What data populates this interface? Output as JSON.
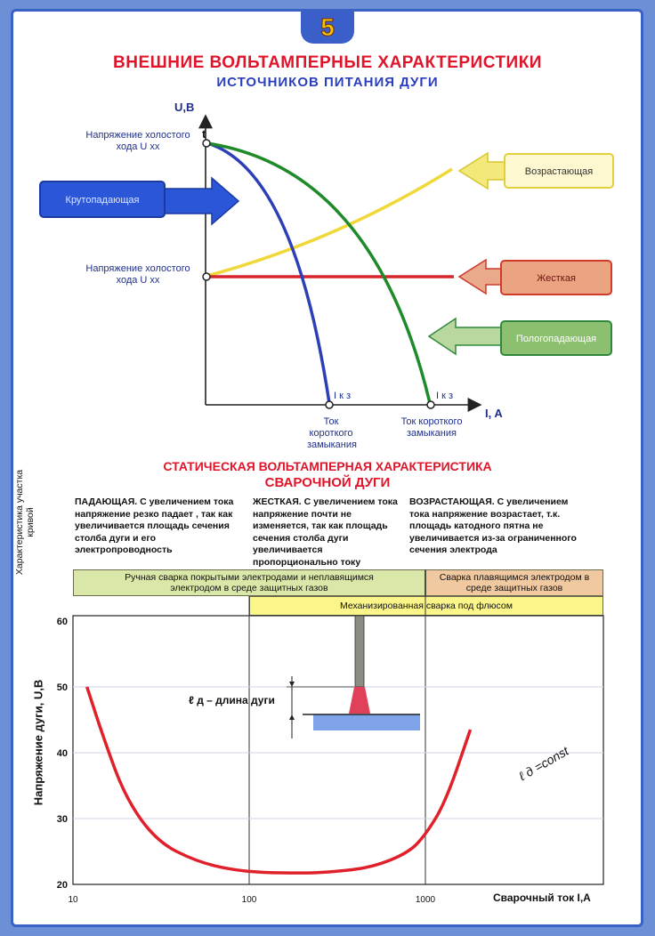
{
  "badge": "5",
  "title": "ВНЕШНИЕ ВОЛЬТАМПЕРНЫЕ ХАРАКТЕРИСТИКИ",
  "subtitle": "ИСТОЧНИКОВ ПИТАНИЯ ДУГИ",
  "chart1": {
    "y_axis_label": "U,B",
    "x_axis_label": "I, A",
    "t_label": "t",
    "uxx_label_1": "Напряжение холостого хода U хх",
    "uxx_label_2": "Напряжение холостого хода U хх",
    "ikz_1": "I к з",
    "ikz_2": "I к з",
    "tok_kz_1": "Ток короткого замыкания",
    "tok_kz_2": "Ток короткого замыкания",
    "callouts": {
      "krutopadayushchaya": "Крутопадающая",
      "vozrastayushchaya": "Возрастающая",
      "zhestkaya": "Жесткая",
      "pologopadayushchaya": "Пологопадающая"
    },
    "colors": {
      "krutopadayushchaya": "#2c3fb8",
      "pologopadayushchaya": "#1f8a2a",
      "zhestkaya": "#d6262b",
      "vozrastayushchaya": "#f0d838"
    }
  },
  "section2": {
    "title_line1": "СТАТИЧЕСКАЯ ВОЛЬТАМПЕРНАЯ ХАРАКТЕРИСТИКА",
    "title_line2": "СВАРОЧНОЙ ДУГИ",
    "side_label": "Характеристика участка кривой",
    "col1": "ПАДАЮЩАЯ. С увеличением тока напряжение резко падает , так как увеличивается площадь сечения столба дуги и его электропроводность",
    "col2": "ЖЕСТКАЯ. С увеличением тока напряжение почти не изменяется, так как площадь сечения столба дуги увеличивается пропорционально току",
    "col3": "ВОЗРАСТАЮЩАЯ. С увеличением тока напряжение возрастает, т.к. площадь катодного пятна не увеличивается из-за ограниченного сечения электрода"
  },
  "chart2": {
    "band1": "Ручная сварка покрытыми электродами и неплавящимся электродом в среде защитных газов",
    "band2": "Сварка плавящимся электродом в среде защитных газов",
    "band3": "Механизированная сварка под флюсом",
    "y_ticks": [
      "60",
      "50",
      "40",
      "30",
      "20"
    ],
    "x_ticks": [
      "10",
      "100",
      "1000"
    ],
    "y_axis_label": "Напряжение дуги, U,B",
    "x_axis_label": "Сварочный ток I,A",
    "arc_length_label": "ℓ д – длина дуги",
    "curve_label": "ℓ д =const",
    "colors": {
      "curve": "#e0202a",
      "band_green": "#d9e8a8",
      "band_orange": "#f0c9a0",
      "band_yellow": "#fbf58a"
    }
  },
  "chart_data": {
    "type": "line",
    "x_scale": "log",
    "xlabel": "Сварочный ток I,A",
    "ylabel": "Напряжение дуги, U,B",
    "xlim": [
      10,
      2000
    ],
    "ylim": [
      20,
      60
    ],
    "x_ticks": [
      10,
      100,
      1000
    ],
    "y_ticks": [
      20,
      30,
      40,
      50,
      60
    ],
    "series": [
      {
        "name": "ℓ д =const",
        "x": [
          12,
          15,
          20,
          30,
          50,
          80,
          120,
          200,
          300,
          500,
          800,
          1000,
          1300,
          1800
        ],
        "y": [
          50,
          42,
          33,
          26.5,
          23.5,
          22.2,
          21.8,
          21.7,
          21.9,
          22.6,
          24.8,
          27.5,
          32.5,
          43.5
        ]
      }
    ]
  }
}
